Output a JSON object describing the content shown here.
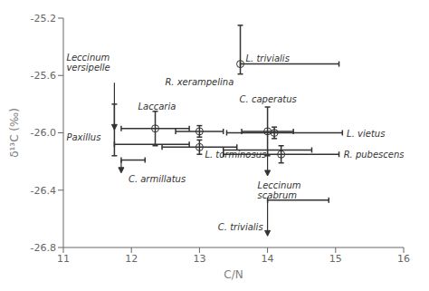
{
  "chart_data": {
    "type": "scatter",
    "xlabel": "C/N",
    "ylabel": "δ¹³C (‰)",
    "xlim": [
      11,
      16
    ],
    "ylim": [
      -26.8,
      -25.2
    ],
    "xticks": [
      11,
      12,
      13,
      14,
      15,
      16
    ],
    "yticks": [
      -26.8,
      -26.4,
      {
        "value": -26.0,
        "label": "-26.0"
      },
      -25.6,
      -25.2
    ],
    "grid": false,
    "marker": "circle",
    "points": [
      {
        "label": "L. trivialis",
        "x": 13.6,
        "y": -25.52,
        "x_err": [
          0.0,
          1.45
        ],
        "y_err": [
          0.07,
          0.27
        ]
      },
      {
        "label": "Laccaria",
        "x": 12.35,
        "y": -25.97,
        "x_err": [
          0.5,
          0.5
        ],
        "y_err": [
          0.12,
          0.12
        ]
      },
      {
        "label": "R. xerampelina",
        "x": 13.0,
        "y": -25.99,
        "x_err": [
          0.35,
          0.35
        ],
        "y_err": [
          0.04,
          0.04
        ]
      },
      {
        "label": "C. caperatus",
        "x": 14.0,
        "y": -25.99,
        "x_err": [
          0.38,
          0.38
        ],
        "y_err": [
          0.17,
          0.17
        ]
      },
      {
        "label": "L. vietus",
        "x": 14.1,
        "y": -26.0,
        "x_err": [
          0.7,
          1.0
        ],
        "y_err": [
          0.04,
          0.04
        ]
      },
      {
        "label": "L. torminosus",
        "x": 13.0,
        "y": -26.1,
        "x_err": [
          0.55,
          0.55
        ],
        "y_err": [
          0.05,
          0.05
        ]
      },
      {
        "label": "R. pubescens",
        "x": 14.2,
        "y": -26.15,
        "x_err": [
          0.85,
          0.85
        ],
        "y_err": [
          0.06,
          0.06
        ]
      }
    ],
    "limits": [
      {
        "label": "Leccinum\nversipelle",
        "x": 11.75,
        "y": -25.98,
        "y_err": [
          0.18,
          0.18
        ],
        "arrow": [
          -25.65,
          -25.98
        ]
      },
      {
        "label": "Paxillus",
        "x": 11.75,
        "y": -26.08,
        "x_err": [
          0.0,
          1.1
        ]
      },
      {
        "label": "C. armillatus",
        "x": 11.85,
        "y": -26.19,
        "x_err": [
          0.0,
          0.35
        ],
        "arrow": [
          -26.19,
          -26.28
        ]
      },
      {
        "label": "Leccinum\nscabrum",
        "x": 14.0,
        "y": -26.12,
        "x_err": [
          0.65,
          0.65
        ],
        "arrow": [
          -26.12,
          -26.3
        ]
      },
      {
        "label": "C. trivialis",
        "x": 14.0,
        "y": -26.47,
        "x_err": [
          0.0,
          0.9
        ],
        "arrow": [
          -26.47,
          -26.72
        ]
      }
    ]
  }
}
